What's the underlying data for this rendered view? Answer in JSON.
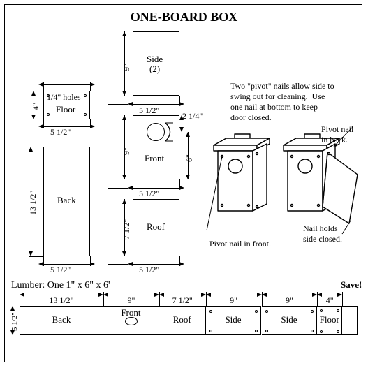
{
  "title": "ONE-BOARD BOX",
  "title_fontsize": 18,
  "colors": {
    "ink": "#000000",
    "bg": "#ffffff"
  },
  "pieces": {
    "side": {
      "label": "Side\n(2)",
      "w": "5 1/2\"",
      "h": "9\""
    },
    "floor": {
      "label": "Floor",
      "w": "5 1/2\"",
      "h": "4\"",
      "holes_label": "1/4\" holes"
    },
    "front": {
      "label": "Front",
      "w": "5 1/2\"",
      "h": "9\"",
      "hole_offset": "2 1/4\"",
      "hole_height_mark": "6\""
    },
    "back": {
      "label": "Back",
      "w": "5 1/2\"",
      "h": "13 1/2\""
    },
    "roof": {
      "label": "Roof",
      "w": "5 1/2\"",
      "h": "7 1/2\""
    }
  },
  "notes": {
    "pivot": "Two \"pivot\" nails allow side to\nswing out for cleaning.  Use\none nail at bottom to keep\ndoor closed.",
    "pivot_back": "Pivot nail\nin back.",
    "pivot_front": "Pivot nail in front.",
    "nail_closed": "Nail holds\nside closed."
  },
  "lumber": {
    "caption": "Lumber:  One 1\" x 6\" x 6'",
    "save": "Save!",
    "height_label": "5 1/2\"",
    "segments": [
      {
        "name": "Back",
        "dim": "13 1/2\""
      },
      {
        "name": "Front",
        "dim": "9\"",
        "has_hole": true
      },
      {
        "name": "Roof",
        "dim": "7 1/2\""
      },
      {
        "name": "Side",
        "dim": "9\"",
        "nail_dots": true
      },
      {
        "name": "Side",
        "dim": "9\"",
        "nail_dots": true
      },
      {
        "name": "Floor",
        "dim": "4\"",
        "corner_dots": true
      }
    ]
  }
}
